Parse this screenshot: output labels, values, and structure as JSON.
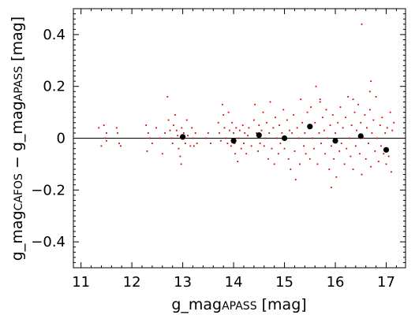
{
  "chart_data": {
    "type": "scatter",
    "title": "",
    "xlabel": {
      "base": "g_mag",
      "sub": "APASS",
      "unit": " [mag]"
    },
    "ylabel": {
      "pre": "g_mag",
      "sub1": "CAFOS",
      "mid": " − g_mag",
      "sub2": "APASS",
      "unit": " [mag]"
    },
    "xlim": [
      10.85,
      17.38
    ],
    "ylim": [
      -0.5,
      0.5
    ],
    "xticks": [
      11,
      12,
      13,
      14,
      15,
      16,
      17
    ],
    "yticks": [
      -0.4,
      -0.2,
      0,
      0.2,
      0.4
    ],
    "ytick_labels": [
      "−0.4",
      "−0.2",
      "0",
      "0.2",
      "0.4"
    ],
    "zero_line": 0,
    "grid": false,
    "colors": {
      "points": "#dd0000",
      "binned": "#000000",
      "axis": "#000000"
    },
    "series": [
      {
        "marker": "small-dot",
        "color": "#dd0000",
        "points": [
          [
            11.35,
            0.04
          ],
          [
            11.4,
            -0.03
          ],
          [
            11.45,
            0.05
          ],
          [
            11.48,
            0.0
          ],
          [
            11.5,
            0.02
          ],
          [
            11.5,
            -0.01
          ],
          [
            11.7,
            0.04
          ],
          [
            11.72,
            0.02
          ],
          [
            11.75,
            -0.02
          ],
          [
            11.78,
            -0.03
          ],
          [
            12.28,
            0.05
          ],
          [
            12.3,
            -0.05
          ],
          [
            12.32,
            0.02
          ],
          [
            12.35,
            0.0
          ],
          [
            12.4,
            -0.02
          ],
          [
            12.48,
            0.04
          ],
          [
            12.55,
            0.0
          ],
          [
            12.6,
            -0.06
          ],
          [
            12.65,
            0.02
          ],
          [
            12.7,
            0.16
          ],
          [
            12.72,
            0.07
          ],
          [
            12.75,
            0.03
          ],
          [
            12.78,
            0.0
          ],
          [
            12.8,
            -0.02
          ],
          [
            12.82,
            0.05
          ],
          [
            12.85,
            0.09
          ],
          [
            12.88,
            0.03
          ],
          [
            12.9,
            0.01
          ],
          [
            12.92,
            -0.04
          ],
          [
            12.95,
            -0.07
          ],
          [
            12.97,
            -0.1
          ],
          [
            12.98,
            0.04
          ],
          [
            13.0,
            0.0
          ],
          [
            13.02,
            0.02
          ],
          [
            13.05,
            -0.02
          ],
          [
            13.08,
            0.07
          ],
          [
            13.1,
            0.01
          ],
          [
            13.15,
            -0.03
          ],
          [
            13.18,
            0.04
          ],
          [
            13.2,
            0.0
          ],
          [
            13.22,
            -0.03
          ],
          [
            13.25,
            0.02
          ],
          [
            13.28,
            -0.02
          ],
          [
            13.45,
            0.0
          ],
          [
            13.5,
            0.02
          ],
          [
            13.55,
            -0.02
          ],
          [
            13.7,
            0.06
          ],
          [
            13.72,
            0.02
          ],
          [
            13.75,
            -0.01
          ],
          [
            13.78,
            0.13
          ],
          [
            13.8,
            0.09
          ],
          [
            13.82,
            0.04
          ],
          [
            13.85,
            0.0
          ],
          [
            13.88,
            -0.02
          ],
          [
            13.9,
            0.1
          ],
          [
            13.92,
            0.03
          ],
          [
            13.95,
            -0.03
          ],
          [
            13.97,
            0.06
          ],
          [
            14.0,
            0.02
          ],
          [
            14.02,
            -0.02
          ],
          [
            14.03,
            -0.06
          ],
          [
            14.05,
            0.04
          ],
          [
            14.08,
            -0.09
          ],
          [
            14.1,
            0.0
          ],
          [
            14.12,
            0.03
          ],
          [
            14.15,
            -0.04
          ],
          [
            14.18,
            0.05
          ],
          [
            14.2,
            -0.02
          ],
          [
            14.22,
            0.02
          ],
          [
            14.25,
            -0.06
          ],
          [
            14.28,
            0.01
          ],
          [
            14.3,
            0.04
          ],
          [
            14.35,
            -0.03
          ],
          [
            14.4,
            0.07
          ],
          [
            14.42,
            0.13
          ],
          [
            14.45,
            0.02
          ],
          [
            14.48,
            -0.05
          ],
          [
            14.5,
            0.05
          ],
          [
            14.52,
            -0.02
          ],
          [
            14.55,
            0.03
          ],
          [
            14.58,
            0.1
          ],
          [
            14.6,
            -0.03
          ],
          [
            14.62,
            0.0
          ],
          [
            14.65,
            0.06
          ],
          [
            14.68,
            -0.08
          ],
          [
            14.7,
            0.02
          ],
          [
            14.72,
            0.14
          ],
          [
            14.75,
            -0.04
          ],
          [
            14.78,
            0.04
          ],
          [
            14.8,
            -0.1
          ],
          [
            14.82,
            0.08
          ],
          [
            14.85,
            0.0
          ],
          [
            14.88,
            -0.06
          ],
          [
            14.9,
            0.05
          ],
          [
            14.92,
            -0.02
          ],
          [
            14.95,
            0.02
          ],
          [
            14.98,
            0.11
          ],
          [
            15.0,
            -0.04
          ],
          [
            15.02,
            0.0
          ],
          [
            15.05,
            0.07
          ],
          [
            15.08,
            -0.08
          ],
          [
            15.1,
            0.03
          ],
          [
            15.12,
            -0.12
          ],
          [
            15.15,
            0.02
          ],
          [
            15.18,
            0.09
          ],
          [
            15.2,
            -0.05
          ],
          [
            15.22,
            -0.16
          ],
          [
            15.25,
            0.04
          ],
          [
            15.28,
            0.0
          ],
          [
            15.3,
            -0.1
          ],
          [
            15.32,
            0.15
          ],
          [
            15.35,
            0.06
          ],
          [
            15.38,
            -0.03
          ],
          [
            15.4,
            0.02
          ],
          [
            15.42,
            -0.06
          ],
          [
            15.45,
            0.1
          ],
          [
            15.48,
            0.04
          ],
          [
            15.5,
            -0.08
          ],
          [
            15.52,
            0.12
          ],
          [
            15.55,
            0.0
          ],
          [
            15.58,
            -0.04
          ],
          [
            15.6,
            0.06
          ],
          [
            15.62,
            0.2
          ],
          [
            15.65,
            -0.1
          ],
          [
            15.68,
            0.02
          ],
          [
            15.7,
            0.14
          ],
          [
            15.72,
            -0.02
          ],
          [
            15.75,
            0.08
          ],
          [
            15.78,
            0.03
          ],
          [
            15.8,
            -0.06
          ],
          [
            15.82,
            0.11
          ],
          [
            15.85,
            0.0
          ],
          [
            15.88,
            -0.12
          ],
          [
            15.9,
            0.05
          ],
          [
            15.92,
            -0.03
          ],
          [
            15.95,
            0.09
          ],
          [
            15.97,
            -0.08
          ],
          [
            16.0,
            0.02
          ],
          [
            16.02,
            -0.15
          ],
          [
            16.05,
            0.06
          ],
          [
            16.08,
            -0.05
          ],
          [
            16.1,
            0.12
          ],
          [
            16.12,
            -0.02
          ],
          [
            16.15,
            0.04
          ],
          [
            16.18,
            -0.1
          ],
          [
            16.2,
            0.08
          ],
          [
            16.22,
            -0.04
          ],
          [
            16.25,
            0.16
          ],
          [
            16.28,
            0.0
          ],
          [
            16.3,
            -0.07
          ],
          [
            16.32,
            0.05
          ],
          [
            16.35,
            -0.12
          ],
          [
            16.38,
            0.1
          ],
          [
            16.4,
            -0.03
          ],
          [
            16.42,
            0.03
          ],
          [
            16.45,
            0.13
          ],
          [
            16.48,
            -0.06
          ],
          [
            16.5,
            0.06
          ],
          [
            16.52,
            -0.14
          ],
          [
            16.55,
            0.0
          ],
          [
            16.58,
            0.09
          ],
          [
            16.6,
            -0.08
          ],
          [
            16.62,
            0.04
          ],
          [
            16.65,
            -0.02
          ],
          [
            16.68,
            0.11
          ],
          [
            16.7,
            -0.11
          ],
          [
            16.72,
            0.02
          ],
          [
            16.75,
            0.07
          ],
          [
            16.78,
            -0.05
          ],
          [
            16.8,
            0.16
          ],
          [
            16.82,
            0.0
          ],
          [
            16.85,
            -0.09
          ],
          [
            16.88,
            0.05
          ],
          [
            16.9,
            -0.03
          ],
          [
            16.92,
            0.08
          ],
          [
            16.95,
            -0.06
          ],
          [
            16.98,
            0.02
          ],
          [
            17.0,
            -0.1
          ],
          [
            17.02,
            0.04
          ],
          [
            17.05,
            -0.07
          ],
          [
            17.08,
            0.1
          ],
          [
            17.1,
            -0.13
          ],
          [
            17.12,
            0.03
          ],
          [
            17.15,
            0.06
          ],
          [
            16.52,
            0.44
          ],
          [
            16.7,
            0.22
          ],
          [
            16.68,
            0.18
          ],
          [
            15.92,
            -0.19
          ],
          [
            15.7,
            0.15
          ],
          [
            16.35,
            0.15
          ]
        ]
      },
      {
        "marker": "large-dot",
        "color": "#000000",
        "points": [
          [
            13.0,
            0.005
          ],
          [
            14.0,
            -0.01
          ],
          [
            14.5,
            0.012
          ],
          [
            15.0,
            0.0
          ],
          [
            15.5,
            0.045
          ],
          [
            16.0,
            -0.01
          ],
          [
            16.5,
            0.008
          ],
          [
            17.0,
            -0.045
          ]
        ]
      }
    ]
  }
}
